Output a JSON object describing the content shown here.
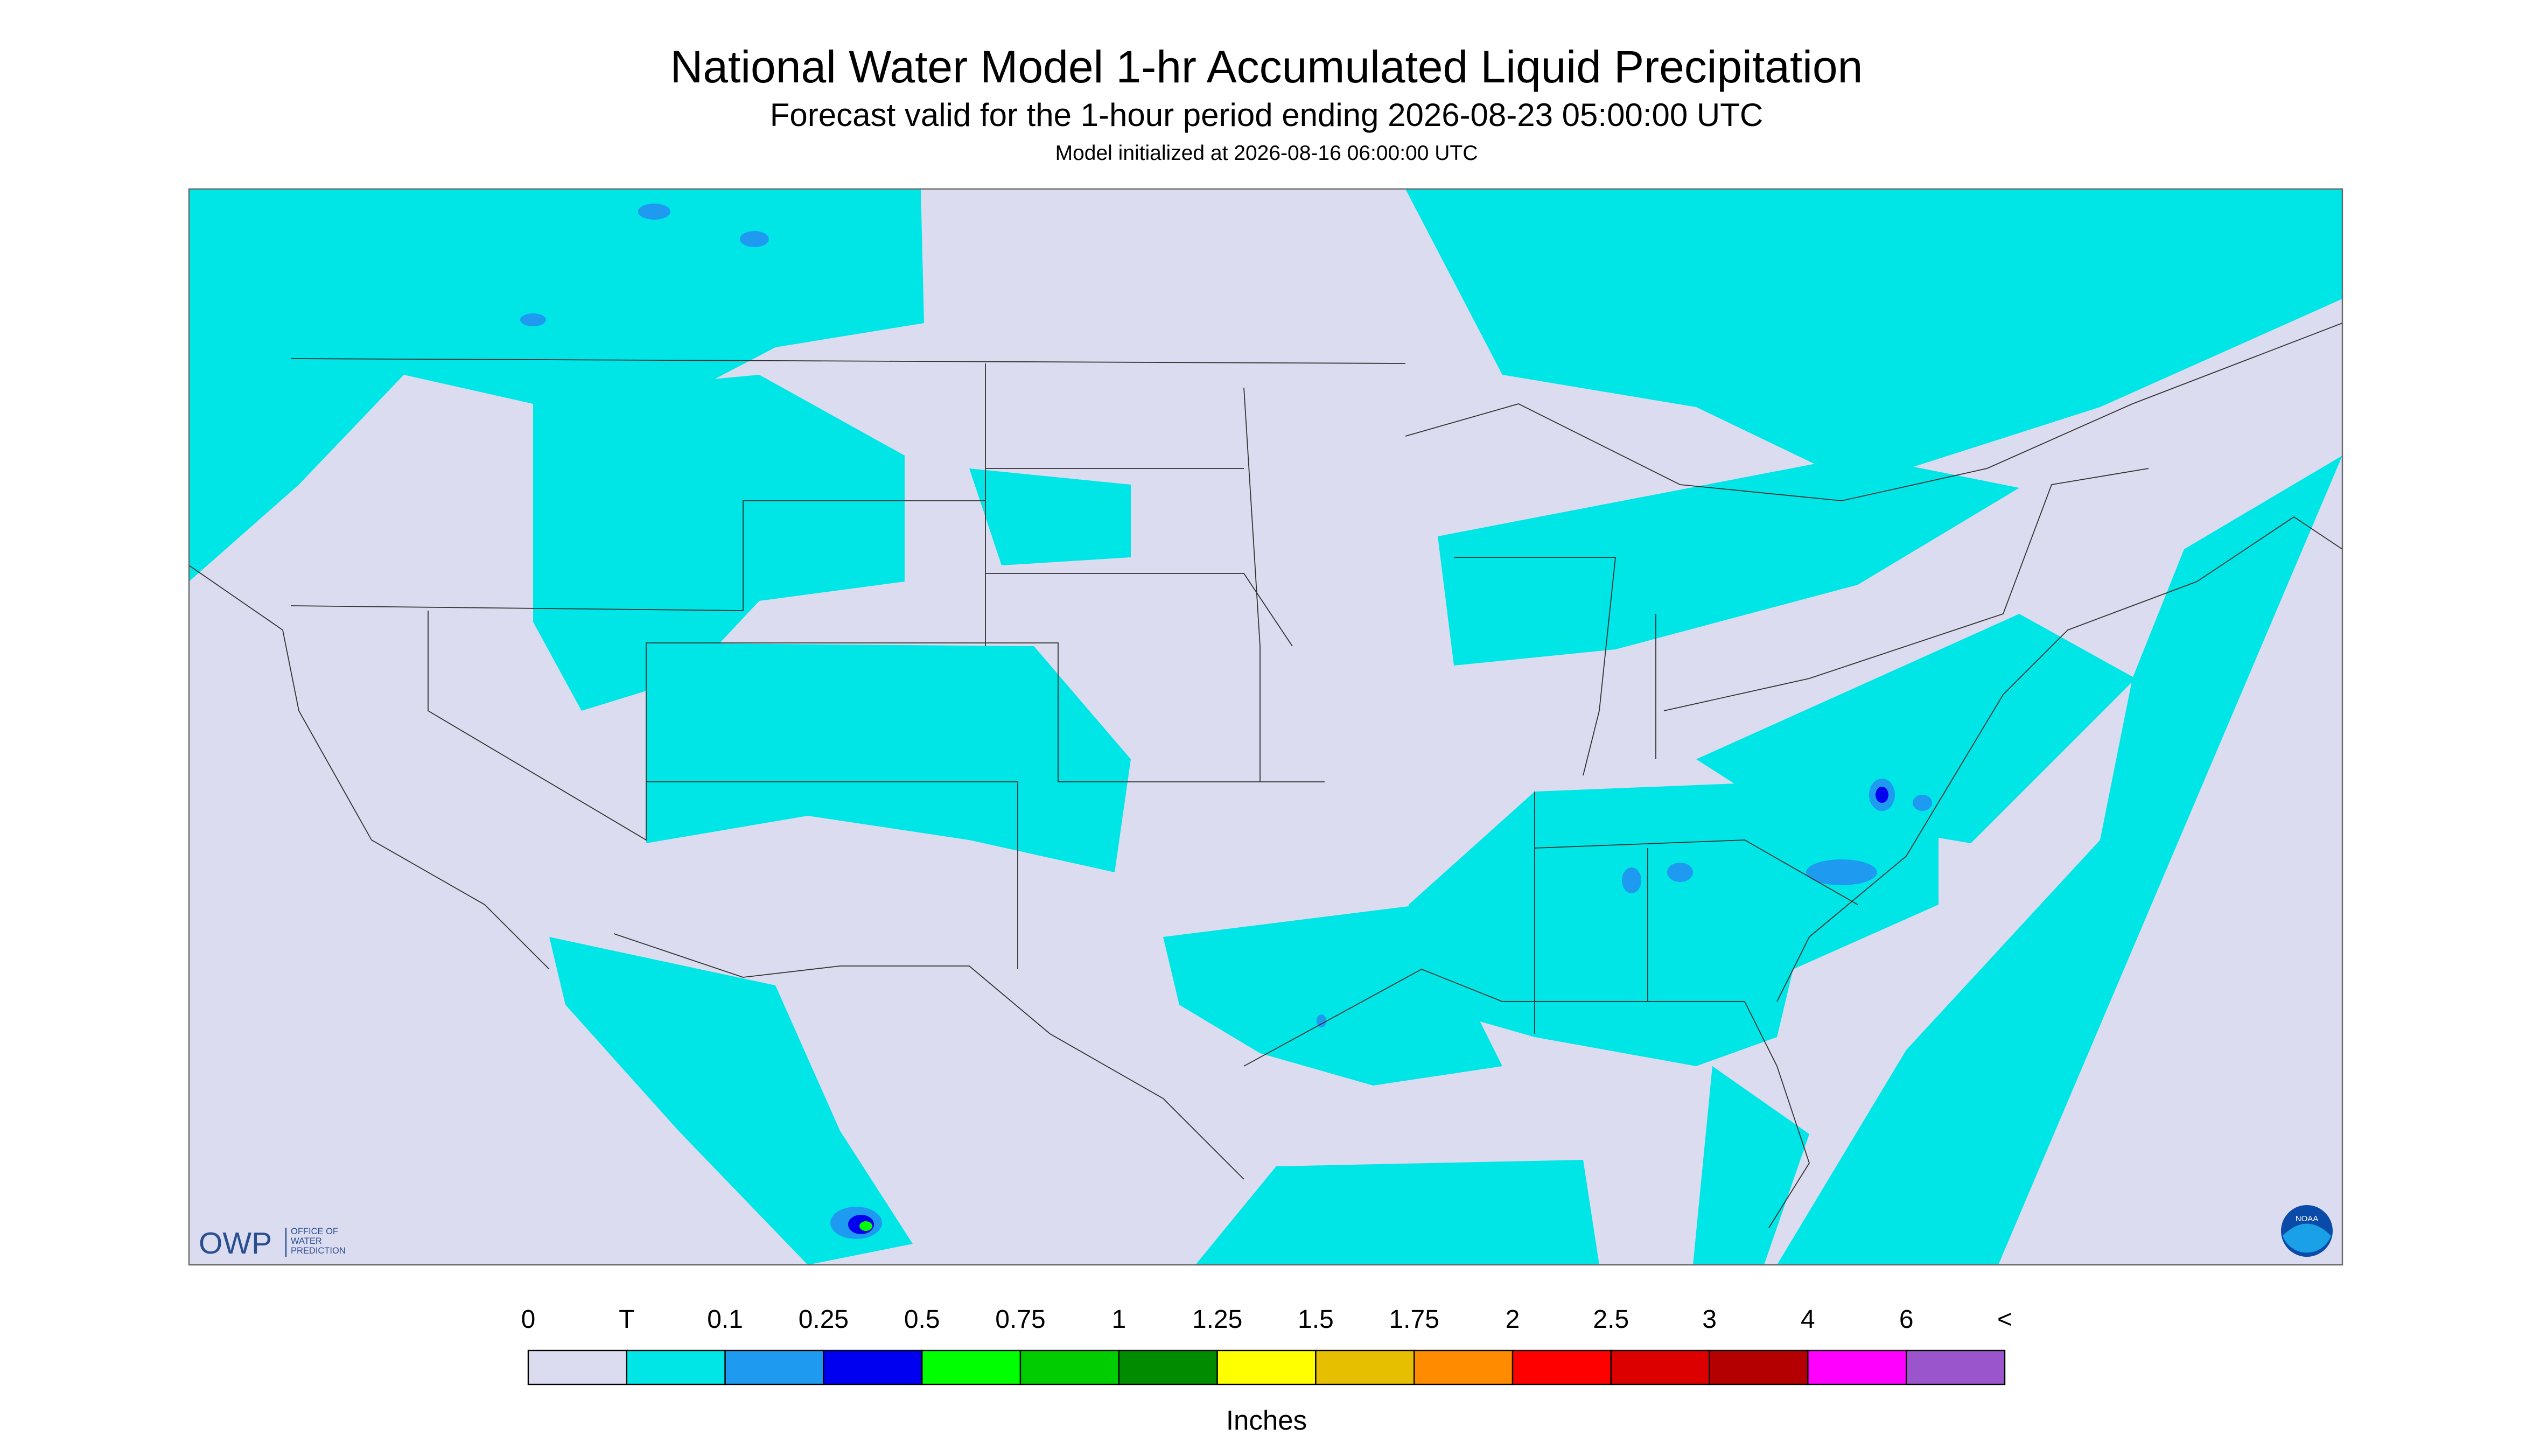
{
  "header": {
    "title": "National Water Model 1-hr Accumulated Liquid Precipitation",
    "subtitle": "Forecast valid for the 1-hour period ending 2026-08-23 05:00:00 UTC",
    "init": "Model initialized at 2026-08-16 06:00:00 UTC"
  },
  "logos": {
    "owp": "OWP",
    "owp_lines": [
      "OFFICE OF",
      "WATER",
      "PREDICTION"
    ],
    "noaa": "NOAA"
  },
  "colorbar": {
    "labels": [
      "0",
      "T",
      "0.1",
      "0.25",
      "0.5",
      "0.75",
      "1",
      "1.25",
      "1.5",
      "1.75",
      "2",
      "2.5",
      "3",
      "4",
      "6",
      "<"
    ],
    "colors": [
      "#dcdcf0",
      "#00e6e6",
      "#1e9bf0",
      "#0000f0",
      "#00ff00",
      "#00cd00",
      "#008b00",
      "#ffff00",
      "#e6bf00",
      "#ff8c00",
      "#ff0000",
      "#dc0000",
      "#b40000",
      "#ff00ff",
      "#9a55cc"
    ],
    "unit": "Inches"
  }
}
